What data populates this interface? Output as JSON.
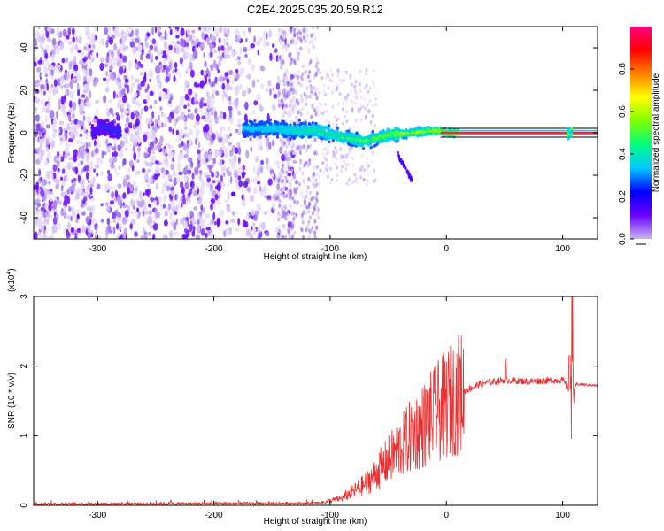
{
  "title": "C2E4.2025.035.20.59.R12",
  "chart_data": [
    {
      "type": "heatmap",
      "xlabel": "Height of straight line (km)",
      "ylabel": "Frequency (Hz)",
      "xlim": [
        -355,
        130
      ],
      "ylim": [
        -50,
        50
      ],
      "xticks": [
        -300,
        -200,
        -100,
        0,
        100
      ],
      "yticks": [
        -40,
        -20,
        0,
        20,
        40
      ],
      "colorbar": {
        "label": "Normalized spectral amplitude",
        "range": [
          0,
          1
        ],
        "ticks": [
          "0.0",
          "0.2",
          "0.4",
          "0.6",
          "0.8"
        ],
        "colors": [
          "#c8b4f0",
          "#6a00ff",
          "#0000ff",
          "#00c8ff",
          "#00ff80",
          "#80ff00",
          "#ffff00",
          "#ff8000",
          "#ff0000",
          "#ff0080"
        ]
      },
      "signal_track": [
        {
          "x": -300,
          "y": 3
        },
        {
          "x": -290,
          "y": 2
        },
        {
          "x": -280,
          "y": 0
        },
        {
          "x": -170,
          "y": 2
        },
        {
          "x": -150,
          "y": 2
        },
        {
          "x": -130,
          "y": 1
        },
        {
          "x": -110,
          "y": 1
        },
        {
          "x": -90,
          "y": -2
        },
        {
          "x": -70,
          "y": -4
        },
        {
          "x": -50,
          "y": -1
        },
        {
          "x": -30,
          "y": 0
        },
        {
          "x": -10,
          "y": 1
        },
        {
          "x": 0,
          "y": 0
        },
        {
          "x": 130,
          "y": 0
        }
      ]
    },
    {
      "type": "line",
      "xlabel": "Height of straight line (km)",
      "ylabel": "SNR (10 * v/v)",
      "y_multiplier": "(x10",
      "y_multiplier_exp": "4",
      "y_multiplier_close": ")",
      "xlim": [
        -355,
        130
      ],
      "ylim": [
        0,
        3
      ],
      "xticks": [
        -300,
        -200,
        -100,
        0,
        100
      ],
      "yticks": [
        0,
        1,
        2,
        3
      ],
      "color": "#e83030",
      "envelope": [
        {
          "x": -355,
          "y": 0.02
        },
        {
          "x": -110,
          "y": 0.03
        },
        {
          "x": -90,
          "y": 0.1
        },
        {
          "x": -70,
          "y": 0.3
        },
        {
          "x": -50,
          "y": 0.65
        },
        {
          "x": -30,
          "y": 1.0
        },
        {
          "x": -10,
          "y": 1.3
        },
        {
          "x": 10,
          "y": 1.6
        },
        {
          "x": 30,
          "y": 1.75
        },
        {
          "x": 50,
          "y": 1.8
        },
        {
          "x": 70,
          "y": 1.78
        },
        {
          "x": 100,
          "y": 1.8
        },
        {
          "x": 108,
          "y": 1.6
        },
        {
          "x": 112,
          "y": 1.74
        },
        {
          "x": 130,
          "y": 1.72
        }
      ],
      "peaks": [
        {
          "x": 51,
          "y": 2.1
        },
        {
          "x": 106,
          "y": 2.15
        },
        {
          "x": 108,
          "y": 3.0
        }
      ]
    }
  ]
}
